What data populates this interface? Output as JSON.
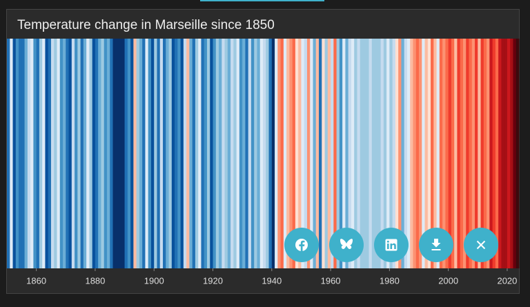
{
  "chart_data": {
    "type": "stripes",
    "title": "Temperature change in Marseille since 1850",
    "x": [
      1850,
      1851,
      1852,
      1853,
      1854,
      1855,
      1856,
      1857,
      1858,
      1859,
      1860,
      1861,
      1862,
      1863,
      1864,
      1865,
      1866,
      1867,
      1868,
      1869,
      1870,
      1871,
      1872,
      1873,
      1874,
      1875,
      1876,
      1877,
      1878,
      1879,
      1880,
      1881,
      1882,
      1883,
      1884,
      1885,
      1886,
      1887,
      1888,
      1889,
      1890,
      1891,
      1892,
      1893,
      1894,
      1895,
      1896,
      1897,
      1898,
      1899,
      1900,
      1901,
      1902,
      1903,
      1904,
      1905,
      1906,
      1907,
      1908,
      1909,
      1910,
      1911,
      1912,
      1913,
      1914,
      1915,
      1916,
      1917,
      1918,
      1919,
      1920,
      1921,
      1922,
      1923,
      1924,
      1925,
      1926,
      1927,
      1928,
      1929,
      1930,
      1931,
      1932,
      1933,
      1934,
      1935,
      1936,
      1937,
      1938,
      1939,
      1940,
      1941,
      1942,
      1943,
      1944,
      1945,
      1946,
      1947,
      1948,
      1949,
      1950,
      1951,
      1952,
      1953,
      1954,
      1955,
      1956,
      1957,
      1958,
      1959,
      1960,
      1961,
      1962,
      1963,
      1964,
      1965,
      1966,
      1967,
      1968,
      1969,
      1970,
      1971,
      1972,
      1973,
      1974,
      1975,
      1976,
      1977,
      1978,
      1979,
      1980,
      1981,
      1982,
      1983,
      1984,
      1985,
      1986,
      1987,
      1988,
      1989,
      1990,
      1991,
      1992,
      1993,
      1994,
      1995,
      1996,
      1997,
      1998,
      1999,
      2000,
      2001,
      2002,
      2003,
      2004,
      2005,
      2006,
      2007,
      2008,
      2009,
      2010,
      2011,
      2012,
      2013,
      2014,
      2015,
      2016,
      2017,
      2018,
      2019,
      2020,
      2021,
      2022,
      2023
    ],
    "colors": [
      "#2171b5",
      "#deebf7",
      "#08519c",
      "#4292c6",
      "#2171b5",
      "#2171b5",
      "#6baed6",
      "#c6dbef",
      "#deebf7",
      "#4292c6",
      "#2171b5",
      "#9ecae1",
      "#deebf7",
      "#08519c",
      "#2171b5",
      "#c6dbef",
      "#9ecae1",
      "#deebf7",
      "#4292c6",
      "#6baed6",
      "#2171b5",
      "#08519c",
      "#c6dbef",
      "#4292c6",
      "#9ecae1",
      "#2171b5",
      "#6baed6",
      "#deebf7",
      "#9ecae1",
      "#08519c",
      "#2171b5",
      "#6baed6",
      "#9ecae1",
      "#4292c6",
      "#6baed6",
      "#2171b5",
      "#08306b",
      "#08306b",
      "#08306b",
      "#08306b",
      "#2171b5",
      "#4292c6",
      "#08519c",
      "#fcbba1",
      "#9ecae1",
      "#6baed6",
      "#2171b5",
      "#deebf7",
      "#4292c6",
      "#08519c",
      "#9ecae1",
      "#2171b5",
      "#c6dbef",
      "#2171b5",
      "#6baed6",
      "#9ecae1",
      "#08519c",
      "#2171b5",
      "#4292c6",
      "#08519c",
      "#c6dbef",
      "#fcbba1",
      "#6baed6",
      "#2171b5",
      "#9ecae1",
      "#deebf7",
      "#2171b5",
      "#4292c6",
      "#9ecae1",
      "#08519c",
      "#4292c6",
      "#9ecae1",
      "#6baed6",
      "#c6dbef",
      "#9ecae1",
      "#6baed6",
      "#c6dbef",
      "#9ecae1",
      "#deebf7",
      "#4292c6",
      "#6baed6",
      "#2171b5",
      "#c6dbef",
      "#4292c6",
      "#9ecae1",
      "#6baed6",
      "#deebf7",
      "#c6dbef",
      "#9ecae1",
      "#2171b5",
      "#08306b",
      "#deebf7",
      "#fc9272",
      "#fb6a4a",
      "#deebf7",
      "#fcbba1",
      "#fc9272",
      "#fb6a4a",
      "#fee0d2",
      "#fcbba1",
      "#deebf7",
      "#c6dbef",
      "#fc9272",
      "#deebf7",
      "#6baed6",
      "#fcbba1",
      "#2171b5",
      "#fee0d2",
      "#9ecae1",
      "#fcbba1",
      "#c6dbef",
      "#fb6a4a",
      "#9ecae1",
      "#4292c6",
      "#deebf7",
      "#6baed6",
      "#c6dbef",
      "#deebf7",
      "#9ecae1",
      "#c6dbef",
      "#9ecae1",
      "#9ecae1",
      "#9ecae1",
      "#c6dbef",
      "#9ecae1",
      "#9ecae1",
      "#9ecae1",
      "#c6dbef",
      "#9ecae1",
      "#deebf7",
      "#9ecae1",
      "#c6dbef",
      "#fee0d2",
      "#fc9272",
      "#6baed6",
      "#c6dbef",
      "#deebf7",
      "#fcbba1",
      "#fc9272",
      "#fb6a4a",
      "#fc9272",
      "#deebf7",
      "#fcbba1",
      "#fee0d2",
      "#fb6a4a",
      "#fcbba1",
      "#deebf7",
      "#fb6a4a",
      "#fc9272",
      "#fb6a4a",
      "#ef3b2c",
      "#fb6a4a",
      "#fcbba1",
      "#ef3b2c",
      "#fb6a4a",
      "#fc9272",
      "#ef3b2c",
      "#fb6a4a",
      "#fc9272",
      "#ef3b2c",
      "#fcbba1",
      "#ef3b2c",
      "#fb6a4a",
      "#fc9272",
      "#cb181d",
      "#ef3b2c",
      "#fb6a4a",
      "#cb181d",
      "#a50f15",
      "#a50f15",
      "#cb181d",
      "#a50f15",
      "#67000d",
      "#3b0a0d"
    ],
    "xlim": [
      1850,
      2024
    ],
    "xticks": [
      1860,
      1880,
      1900,
      1920,
      1940,
      1960,
      1980,
      2000,
      2020
    ]
  }
}
